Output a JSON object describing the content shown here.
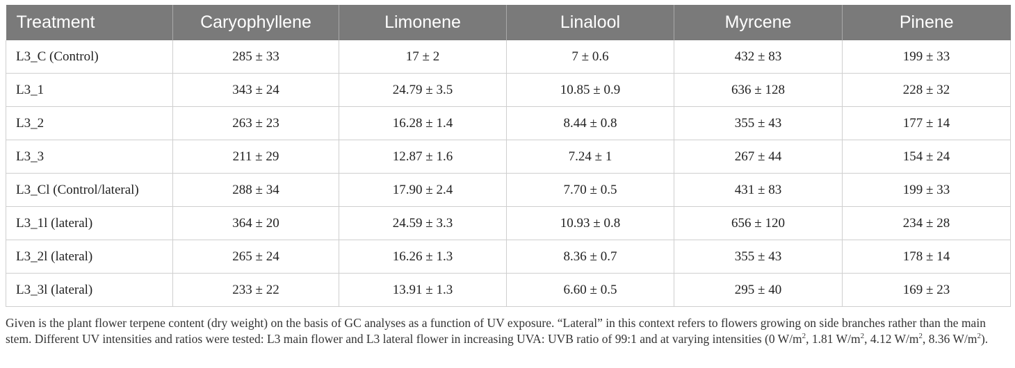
{
  "table": {
    "headers": [
      "Treatment",
      "Caryophyllene",
      "Limonene",
      "Linalool",
      "Myrcene",
      "Pinene"
    ],
    "rows": [
      [
        "L3_C (Control)",
        "285 ± 33",
        "17 ± 2",
        "7 ± 0.6",
        "432 ± 83",
        "199 ± 33"
      ],
      [
        "L3_1",
        "343 ± 24",
        "24.79 ± 3.5",
        "10.85 ± 0.9",
        "636 ± 128",
        "228 ± 32"
      ],
      [
        "L3_2",
        "263 ± 23",
        "16.28 ± 1.4",
        "8.44 ± 0.8",
        "355 ± 43",
        "177 ± 14"
      ],
      [
        "L3_3",
        "211 ± 29",
        "12.87 ± 1.6",
        "7.24 ± 1",
        "267 ± 44",
        "154 ± 24"
      ],
      [
        "L3_Cl (Control/lateral)",
        "288 ± 34",
        "17.90 ± 2.4",
        "7.70 ± 0.5",
        "431 ± 83",
        "199 ± 33"
      ],
      [
        "L3_1l (lateral)",
        "364 ± 20",
        "24.59 ± 3.3",
        "10.93 ± 0.8",
        "656 ± 120",
        "234 ± 28"
      ],
      [
        "L3_2l (lateral)",
        "265 ± 24",
        "16.26 ± 1.3",
        "8.36 ± 0.7",
        "355 ± 43",
        "178 ± 14"
      ],
      [
        "L3_3l (lateral)",
        "233 ± 22",
        "13.91 ± 1.3",
        "6.60 ± 0.5",
        "295 ± 40",
        "169 ± 23"
      ]
    ]
  },
  "caption": {
    "text_main": "Given is the plant flower terpene content (dry weight) on the basis of GC analyses as a function of UV exposure. “Lateral” in this context refers to flowers growing on side branches rather than the main stem. Different UV intensities and ratios were tested: L3 main flower and L3 lateral flower in increasing UVA: UVB ratio of 99:1 and at varying intensities (",
    "intensities": [
      "0 W/m",
      "1.81 W/m",
      "4.12 W/m",
      "8.36 W/m"
    ],
    "superscript": "2",
    "separator": ", ",
    "closing": ")."
  }
}
